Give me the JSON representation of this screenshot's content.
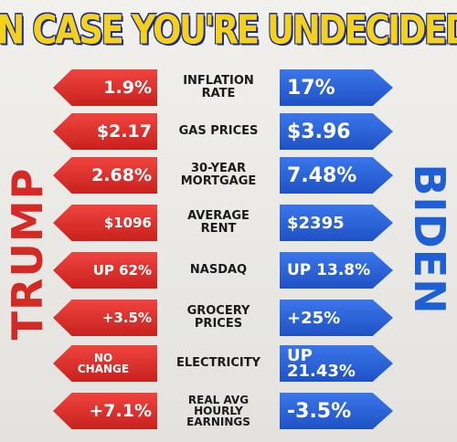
{
  "title": "IN CASE YOU'RE UNDECIDED",
  "left_candidate": "TRUMP",
  "right_candidate": "BIDEN",
  "colors": {
    "trump": "#d42a26",
    "biden": "#1f5fd6",
    "title": "#f4d21c"
  },
  "rows": [
    {
      "label": "INFLATION\nRATE",
      "trump": "1.9%",
      "biden": "17%"
    },
    {
      "label": "GAS PRICES",
      "trump": "$2.17",
      "biden": "$3.96"
    },
    {
      "label": "30-YEAR\nMORTGAGE",
      "trump": "2.68%",
      "biden": "7.48%"
    },
    {
      "label": "AVERAGE\nRENT",
      "trump": "$1096",
      "biden": "$2395"
    },
    {
      "label": "NASDAQ",
      "trump": "UP 62%",
      "biden": "UP 13.8%"
    },
    {
      "label": "GROCERY\nPRICES",
      "trump": "+3.5%",
      "biden": "+25%"
    },
    {
      "label": "ELECTRICITY",
      "trump": "NO\nCHANGE",
      "biden": "UP\n21.43%"
    },
    {
      "label": "REAL AVG\nHOURLY\nEARNINGS",
      "trump": "+7.1%",
      "biden": "-3.5%"
    }
  ]
}
